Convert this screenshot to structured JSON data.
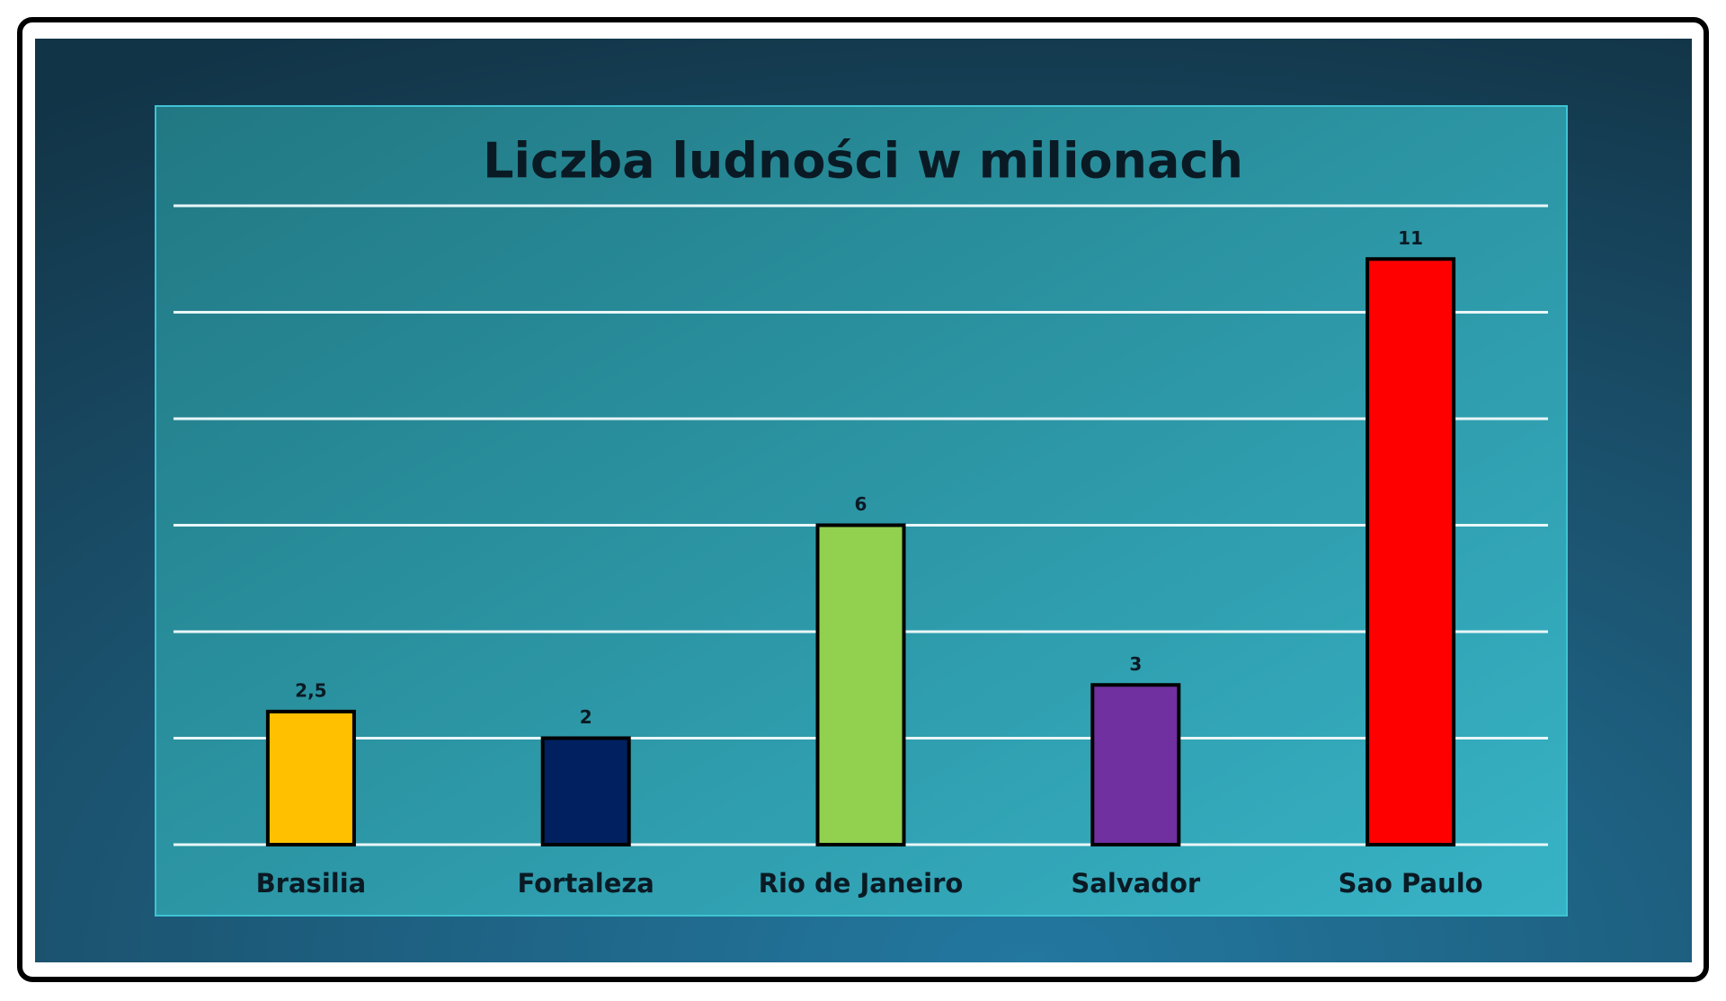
{
  "chart_data": {
    "type": "bar",
    "title": "Liczba ludności w milionach",
    "categories": [
      "Brasilia",
      "Fortaleza",
      "Rio de Janeiro",
      "Salvador",
      "Sao Paulo"
    ],
    "values": [
      2.5,
      2,
      6,
      3,
      11
    ],
    "value_labels": [
      "2,5",
      "2",
      "6",
      "3",
      "11"
    ],
    "colors": [
      "#ffc000",
      "#002060",
      "#92d050",
      "#7030a0",
      "#ff0000"
    ],
    "ylim": [
      0,
      12
    ],
    "yticks": [
      0,
      2,
      4,
      6,
      8,
      10,
      12
    ],
    "grid": true
  }
}
